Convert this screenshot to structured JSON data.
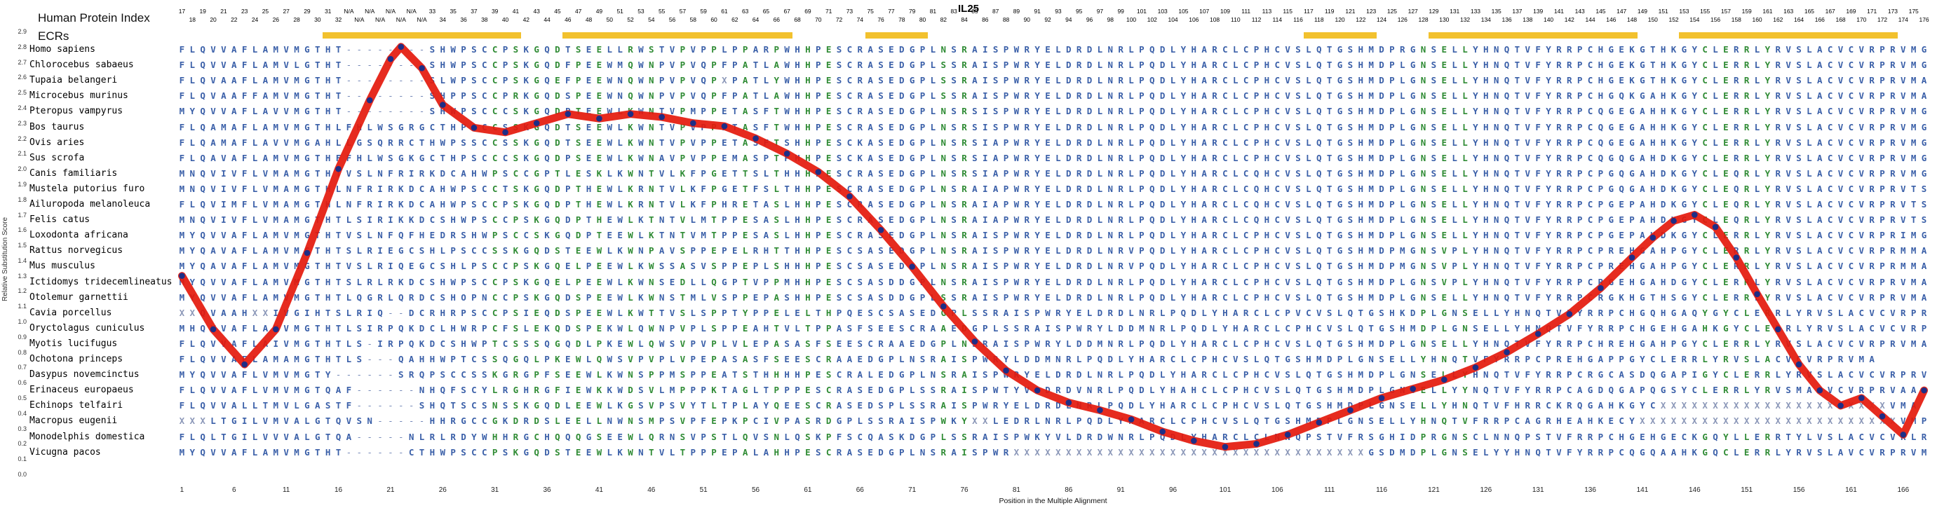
{
  "title": "IL25",
  "y_axis": {
    "label": "Relative Substitution Score",
    "ticks": [
      "2.9",
      "2.8",
      "2.7",
      "2.6",
      "2.5",
      "2.4",
      "2.3",
      "2.2",
      "2.1",
      "2.0",
      "1.9",
      "1.8",
      "1.7",
      "1.6",
      "1.5",
      "1.4",
      "1.3",
      "1.2",
      "1.1",
      "1.0",
      "0.9",
      "0.8",
      "0.7",
      "0.6",
      "0.5",
      "0.4",
      "0.3",
      "0.2",
      "0.1",
      "0.0"
    ]
  },
  "x_axis": {
    "label": "Position in the Multiple Alignment",
    "ticks": [
      1,
      6,
      11,
      16,
      21,
      26,
      31,
      36,
      41,
      46,
      51,
      56,
      61,
      66,
      71,
      76,
      81,
      86,
      91,
      96,
      101,
      106,
      111,
      116,
      121,
      126,
      131,
      136,
      141,
      146,
      151,
      156,
      161,
      166
    ]
  },
  "header": {
    "hpi_label": "Human Protein Index",
    "ecr_label": "ECRs",
    "top_numbers": [
      "17",
      "19",
      "21",
      "23",
      "25",
      "27",
      "29",
      "31",
      "N/A",
      "N/A",
      "N/A",
      "N/A",
      "33",
      "35",
      "37",
      "39",
      "41",
      "43",
      "45",
      "47",
      "49",
      "51",
      "53",
      "55",
      "57",
      "59",
      "61",
      "63",
      "65",
      "67",
      "69",
      "71",
      "73",
      "75",
      "77",
      "79",
      "81",
      "83",
      "85",
      "87",
      "89",
      "91",
      "93",
      "95",
      "97",
      "99",
      "101",
      "103",
      "105",
      "107",
      "109",
      "111",
      "113",
      "115",
      "117",
      "119",
      "121",
      "123",
      "125",
      "127",
      "129",
      "131",
      "133",
      "135",
      "137",
      "139",
      "141",
      "143",
      "145",
      "147",
      "149",
      "151",
      "153",
      "155",
      "157",
      "159",
      "161",
      "163",
      "165",
      "167",
      "169",
      "171",
      "173",
      "175"
    ],
    "bottom_numbers": [
      "18",
      "20",
      "22",
      "24",
      "26",
      "28",
      "30",
      "32",
      "N/A",
      "N/A",
      "N/A",
      "N/A",
      "34",
      "36",
      "38",
      "40",
      "42",
      "44",
      "46",
      "48",
      "50",
      "52",
      "54",
      "56",
      "58",
      "60",
      "62",
      "64",
      "66",
      "68",
      "70",
      "72",
      "74",
      "76",
      "78",
      "80",
      "82",
      "84",
      "86",
      "88",
      "90",
      "92",
      "94",
      "96",
      "98",
      "100",
      "102",
      "104",
      "106",
      "108",
      "110",
      "112",
      "114",
      "116",
      "118",
      "120",
      "122",
      "124",
      "126",
      "128",
      "130",
      "132",
      "134",
      "136",
      "138",
      "140",
      "142",
      "144",
      "146",
      "148",
      "150",
      "152",
      "154",
      "156",
      "158",
      "160",
      "162",
      "164",
      "166",
      "168",
      "170",
      "172",
      "174",
      "176"
    ]
  },
  "ecr_bars": [
    {
      "start": 15,
      "end": 33
    },
    {
      "start": 38,
      "end": 59
    },
    {
      "start": 67,
      "end": 72
    },
    {
      "start": 109,
      "end": 115
    },
    {
      "start": 121,
      "end": 140
    },
    {
      "start": 145,
      "end": 165
    }
  ],
  "alignment": {
    "columns": 168,
    "green_columns": [
      31,
      33,
      35,
      37,
      39,
      41,
      44,
      46,
      49,
      52,
      55,
      58,
      61,
      63,
      74,
      76,
      120,
      122,
      124,
      147,
      149,
      151,
      153
    ],
    "species": [
      {
        "name": "Homo sapiens",
        "seq": "FLQVVAFLAMVMGTHT--------SHWPSCCPSKGQDTSEELLRWSTVPVPPLPPARPWHHPESCRASEDGPLNSRAISPWRYELDRDLNRLPQDLYHARCLCPHCVSLQTGSHMDPRGNSELLYHNQTVFYRRPCHGEKGTHKGYCLERRLYRVSLACVCVRPRVMG"
      },
      {
        "name": "Chlorocebus sabaeus",
        "seq": "FLQVVAFLAMVLGTHT--------SHWPSCCPSKGQDFPEEWMQWNPVPVQPFPATLAWHHPESCRASEDGPLSSRAISPWRYELDRDLNRLPQDLYHARCLCPHCVSLQTGSHMDPLGNSELLYHNQTVFYRRPCHGEKGTHKGYCLERRLYRVSLACVCVRPRVMG"
      },
      {
        "name": "Tupaia belangeri",
        "seq": "FLQVAAFLAMVMGTHT--------SLWPSCCPSKGQEFPEEWNQWNPVPVQPXPATLYWHHPESCRASEDGPLSSRAISPWRYELDRDLNRLPQDLYHARCLCPHCVSLQTGSHMDPLGNSELLYHNQTVFYRRPCHGEKGTHKGYCLERRLYRVSLACVCVRPRVMA"
      },
      {
        "name": "Microcebus murinus",
        "seq": "FLQVAAFFAMVMGTHT--------SHPPSCCPRKGQDSPEEWNQWNPVPVQPFPATLAWHHPESCRASEDGPLSSRAISPWRYELDRDLNRLPQDLYHARCLCPHCVSLQTGSHMDPLGNSELLYHNQTVFYRRPCHGQKGAHKGYCLERRLYRVSLACVCVRPRVMA"
      },
      {
        "name": "Pteropus vampyrus",
        "seq": "MYQVVAFLAVVMGTHT--------SHWPSCCCSKGQDPTEEWLKWNTVPMPPETASFTWHHPESCRASEDGPLNSRSISPWRYELDRDLNRLPQDLYHARCLCPHCVSLQTGSHMDPLGNSELLYHNQTVFYRRPCQGEGAHHKGYCLERRLYRVSLACVCVRPRVMG"
      },
      {
        "name": "Bos taurus",
        "seq": "FLQAMAFLAMVMGTHLFHLWSGRGCTHPSCCSSKGQDTSEEWLKWNTVPVPPETASFTWHHPESCRASEDGPLNSRSISPWRYELDRDLNRLPQDLYHARCLCPHCVSLQTGSHMDPLGNSELLYHNQTVFYRRPCQGEGAHHKGYCLERRLYRVSLACVCVRPRVMG"
      },
      {
        "name": "Ovis aries",
        "seq": "FLQAMAFLAVVMGAHLLGSQRRCTHWPSSCCSSKGQDTSEEWLKWNTVPVPPETASFTSHHPESCKASEDGPLNSRSIAPWRYELDRDLNRLPQDLYHARCLCPHCVSLQTGSHMDPLGNSELLYHNQTVFYRRPCQGEGAHHKGYCLERRLYRVSLACVCVRPRVMG"
      },
      {
        "name": "Sus scrofa",
        "seq": "FLQAVAFLAMVMGTHFFHLWSGKGCTHPSCCCSKGQDPSEEWLKWNAVPVPPEMASPTPHHPESCKASEDGPLNSRSIAPWRYELDRDLNRLPQDLYHARCLCPHCVSLQTGSHMDPLGNSELLYHNQTVFYRRPCQGQGAHDKGYCLERRLYRVSLACVCVRPRVMG"
      },
      {
        "name": "Canis familiaris",
        "seq": "MNQVIVFLVMAMGTHTVSLNFRIRKDCAHWPSCCGPTLESKLKWNTVLKFPGETTSLTHHHPESCRASEDGPLNSRSIAPWRYELDRDLNRLPQDLYHARCLCQHCVSLQTGSHMDPLGNSELLYHNQTVFYRRPCPGQGAHDKGYCLEQRLYRVSLACVCVRPRVMG"
      },
      {
        "name": "Mustela putorius furo",
        "seq": "MNQVIVFLVMAMGTHLNFRIRKDCAHWPSCCTSKGQDPTHEWLKRNTVLKFPGETFSLTHHPESCRASEDGPLNSRAIAPWRYELDRDLNRLPQDLYHARCLCQHCVSLQTGSHMDPLGNSELLYHNQTVFYRRPCP GQGAHDKGYCLEQRLYRVSLACVCVRPRVTS"
      },
      {
        "name": "Ailuropoda melanoleuca",
        "seq": "FLQVIMFLVMAMGTHLNFRIRKDCAHWPSCCPSKGQDPTHEWLKRNTVLKFPHRETASLHHPESCRASEDGPLNSRAIAPWRYELDRDLNRLPQDLYHARCLCQHCVSLQTGSHMDPLGNSELLYHNQTVFYRRPCPGEPAHDKGYCLEQRLYRVSLACVCVRPRVTS"
      },
      {
        "name": "Felis catus",
        "seq": "MNQVIVFLVMAMGTHTLSIRIKKDCSHWPSCCPSKGQDPTHEWLKTNTVLMTPPESASLHHPESCRASEDGPLNSRAIAPWRYELDRDLNRLPQDLYHARCLCQHCVSLQTGSHMDPLGNSELLYHNQTVFYRRPCPGEPAHDKGYCLEQRLYRVSLACVCVRPRVTS"
      },
      {
        "name": "Loxodonta africana",
        "seq": "MYQVVAFLAMVMGTHTVSLNFQFHEDRSHWPSCCSKGQDPTEEWLKTNTVMTPPESASLHHPESCRASEDGPLNSRAISPWRYELDRDLNRLPQDLYHARCLCPHCVSLQTGSHMDPLGNSELLYHNQTVFYRRPCPGEPAHDKGYCLERRLYRVSLACVCVRPRIMG"
      },
      {
        "name": "Rattus norvegicus",
        "seq": "MYQAVAFLAMVMGTHTSLRIEGCSHLPSCCSSKGQDSTEEWLKWNPAVSPPEPELRHTTHHPESCSASEDGPLNSRAISPWRYELDRDLNRVPQDLYHARCLCPHCVSLQTGSHMDPMGNSVPLYHNQTVFYRRPCPREHGAHPGYCLERRLYRVSLACVCVRPRMMA"
      },
      {
        "name": "Mus musculus",
        "seq": "MYQAVAFLAMVMGTHTVSLRIQEGCSHLPSCCPSKGQELPEEWLKWSSASVSPPEPLSHHHPESCSASEDGPLNSRAISPWRYELDRDLNRVPQDLYHARCLCPHCVSLQTGSHMDPMGNSVPLYHNQTVFYRRPCPREHGAHPGYCLERRLYRVSLACVCVRPRMMA"
      },
      {
        "name": "Ictidomys tridecemlineatus",
        "seq": "MYQVVAFLAMVMGTHTSLRLRKDCSHWPSCCPSKGQELPEEWLKWNSEDLLQGPTVPPMHHPESCSASDDGPLNSRAISPWRYELDRDLNRLPQDLYHARCLCPHCVSLQTGSHMDPLGNSVPLYHNQTVFYRRPCRGEHGAHDGYCLERRLYRVSLACVCVRPRVMA"
      },
      {
        "name": "Otolemur garnettii",
        "seq": "MYQVVAFLAMVMGTHTLQGRLQRDCSHOPNCCPSKGQDSPEEWLKWNSTMLVSPPEPASHHPESCSASDDGPLSSRAISPWRYELDRDLNRLPQDLYHARCLCPHCVSLQTGSHMDPLGNSELLYHNQTVFYRRPCRGKHGTHSGYCLERRLYRVSLACVCVRPRVMA"
      },
      {
        "name": "Cavia porcellus",
        "seq": "XXQVAAHXXIVGIHTSLRIQ--DCRHRPSCCPSIEQDSPEEWLKWTTVSLSPPTYPPELELTHPQESCSASEDGPLSSRAISPWRYELDRDLNRLPQDLYHARCLCPVCVSLQTGSHKDPLGNSELLYHNQTVFYRRPCHGQHGAQYGYCLERRLYRVSLACVCVRPRVMA"
      },
      {
        "name": "Oryctolagus cuniculus",
        "seq": "MHQVVAFLAVVMGTHTLSIRPQKDCLHWRPCFSLEKQDSPEKWLQWNPVPLSPPEAHTVLTPPASFSEESCRAAEDGPLSSRAISPWRYLDDMNRLPQDLYHARCLCPHCVSLQTGSHMDPLGNSELLYHNQTVFYRRPCHGEHGAHKGYCLERRLYRVSLACVCVRPRVMA"
      },
      {
        "name": "Myotis lucifugus",
        "seq": "FLQVVAFLAIVMGTHTLS-IRPQKDCSHWPTCSSSQGQDLPKEWLQWSVPVPLVLEPASASFSEESCRAAEDGPLNSRAISPWRYLDDMNRLPQDLYHARCLCPHCVSLQTGSHMDPLGNSELLYHNQTVFYRRPCHREHGAHPGYCLERRLYRVSLACVCVRPRVMA"
      },
      {
        "name": "Ochotona princeps",
        "seq": "FLQVVAFLAMAMGTHTLS---QAHHWPTCSSQGQLPKEWLQWSVPVPLVPEPASASFSEESCRAAEDGPLNSRAISPWRYLDDMNRLPQDLYHARCLCPHCVSLQTGSHMDPLGNSELLYHNQTVFYRRPCPREHGAPPGYCLERRLYRVSLACVCVRPRVMA"
      },
      {
        "name": "Dasypus novemcinctus",
        "seq": "MYQVVAFLVMVMGTY------SRQPSCCSSKGRGPFSEEWLKWNSPPMSPPEATSTHHHHPESCRALEDGPLNSRAISPWRYELDRDLNRLPQDLYHARCLCPHCVSLQTGSHMDPLGNSELLYHNQTVFYRRPCRGCASDQGAPIGYCLERRLYRVSLACVCVRPRVMA"
      },
      {
        "name": "Erinaceus europaeus",
        "seq": "FLQVVAFLVMVMGTQAF------NHQFSCYLRGHRGFIEWKKWDSVLMPPPKTAGLTPPPESCRASEDGPLSSRAISPWTYVLDRDVNRLPQDLYHAHCLCPHCVSLQTGSHMDPLGNSELLYYNQTVFYRRPCAGDQGAPQGSYCLERRLYRVSMACVCVRPRVAA"
      },
      {
        "name": "Echinops telfairi",
        "seq": "FLQVVALLTMVLGASTF------SHQTSCSNSSKGQDLEEWLKGSVPSVYTLTPLAYQEESCRASEDSPLSSRAISPWRYELDRDLNRLPQDLYHARCLCPHCVSLQTGSHMDPLGNSELLYHNQTVFHRRCKRQGAHKGYCXXXXXXXXXXXXXXXXXXXXXXVMA"
      },
      {
        "name": "Macropus eugenii",
        "seq": "XXXLTGILVMVALGTQVSN-----HHRGCCGKDRDSLEELLNWNSMPSVPFEPKPCIVPASRDGPLSSRAISPWKYXXLEDRLNRLPQDLYHARCLCPHCVSLQTGSHMDPLGNSELLYHNQTVFRRPCAGRHEAHKECYXXXXXXXXXXXXXXXXXXXXXXXXXVMP"
      },
      {
        "name": "Monodelphis domestica",
        "seq": "FLQLTGILVVVALGTQA-----NLRLRDYWHHRGCHQQQGSEEWLQRNSVPSTLQVSNLQSKPFSCQASKDGPLSSRAISPWKYVLDRDWNRLPQDLYHARCLCLNNQPSTVFRSGHIDPRGNSCLNNQPSTVFRRPCHGEHGECKGQYLLERRTYLVSLACVCVRLRVMP"
      },
      {
        "name": "Vicugna pacos",
        "seq": "MYQVVAFLAMVMGTHT------CTHWPSCCPSKGQDSTEEWLKWNTVLTPPPEPALAHHPESCRASEDGPLNSRAISPWRXXXXXXXXXXXXXXXXXXXXXXXXXXXXXXXXXXGSDMDPLGNSELYYHNQTVFYRRPCQGQAAHKGQCLERRLYRVSLAVCVRPRVMA"
      }
    ]
  },
  "chart_data": {
    "type": "line",
    "title": "IL25",
    "xlabel": "Position in the Multiple Alignment",
    "ylabel": "Relative Substitution Score",
    "xlim": [
      1,
      168
    ],
    "ylim": [
      0,
      2.9
    ],
    "legend": "none",
    "grid": false,
    "x": [
      1,
      4,
      7,
      10,
      13,
      16,
      19,
      21,
      22,
      24,
      26,
      29,
      32,
      35,
      38,
      41,
      44,
      47,
      50,
      53,
      56,
      59,
      62,
      65,
      68,
      71,
      74,
      77,
      80,
      83,
      86,
      89,
      92,
      95,
      98,
      101,
      104,
      107,
      110,
      113,
      116,
      119,
      122,
      125,
      128,
      131,
      134,
      137,
      140,
      142,
      144,
      146,
      148,
      150,
      152,
      154,
      156,
      158,
      160,
      162,
      164,
      166,
      168
    ],
    "y": [
      1.3,
      0.95,
      0.72,
      0.95,
      1.45,
      2.0,
      2.45,
      2.72,
      2.8,
      2.66,
      2.42,
      2.27,
      2.24,
      2.3,
      2.36,
      2.33,
      2.36,
      2.34,
      2.3,
      2.28,
      2.2,
      2.1,
      1.98,
      1.82,
      1.6,
      1.36,
      1.1,
      0.87,
      0.68,
      0.55,
      0.47,
      0.42,
      0.36,
      0.28,
      0.22,
      0.18,
      0.2,
      0.26,
      0.34,
      0.42,
      0.5,
      0.56,
      0.62,
      0.7,
      0.8,
      0.92,
      1.05,
      1.22,
      1.42,
      1.55,
      1.66,
      1.7,
      1.62,
      1.42,
      1.18,
      0.95,
      0.72,
      0.55,
      0.45,
      0.5,
      0.38,
      0.26,
      0.55
    ]
  },
  "colors": {
    "curve": "#E4190C",
    "dots": "#1E2E86",
    "ecr_bar": "#F2C12E",
    "residue_blue": "#3A5FA8",
    "residue_green": "#2F8B34",
    "gap": "#7488B8",
    "unknown_residue": "#8B97B8"
  }
}
